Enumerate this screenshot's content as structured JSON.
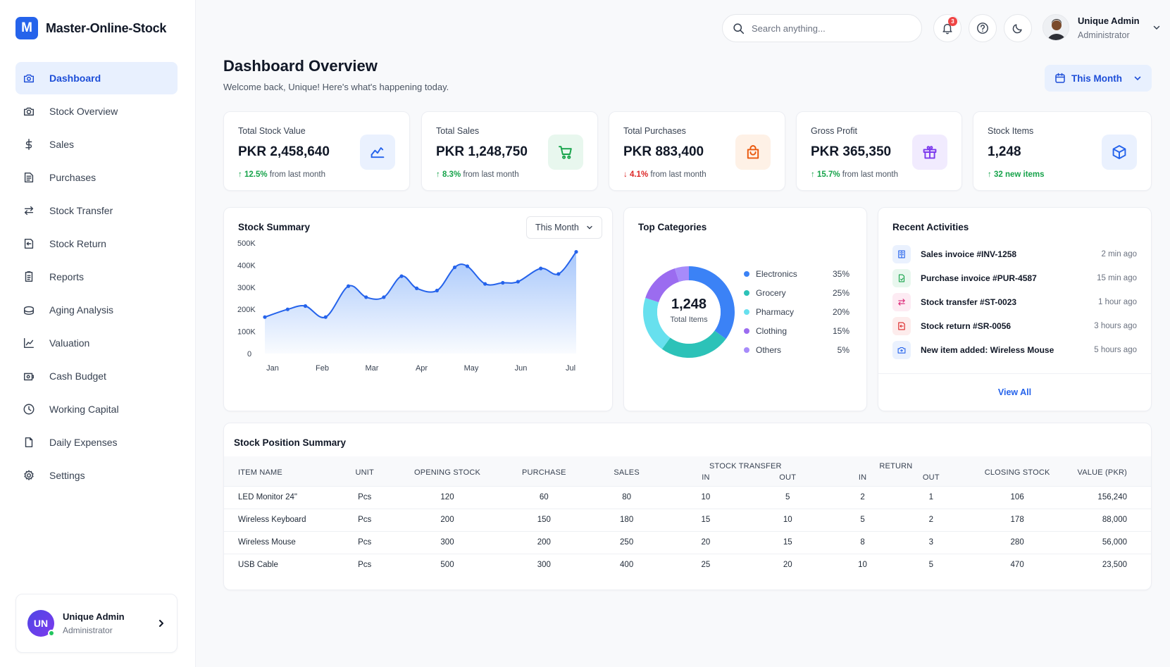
{
  "brand": {
    "logo_letter": "M",
    "name": "Master-Online-Stock"
  },
  "sidebar": {
    "items": [
      {
        "label": "Dashboard",
        "icon": "dashboard-icon",
        "active": true
      },
      {
        "label": "Stock Overview",
        "icon": "camera-box-icon"
      },
      {
        "label": "Sales",
        "icon": "dollar-icon"
      },
      {
        "label": "Purchases",
        "icon": "receipt-icon"
      },
      {
        "label": "Stock Transfer",
        "icon": "transfer-icon"
      },
      {
        "label": "Stock Return",
        "icon": "return-icon"
      },
      {
        "label": "Reports",
        "icon": "report-icon"
      },
      {
        "label": "Aging Analysis",
        "icon": "stack-icon"
      },
      {
        "label": "Valuation",
        "icon": "chart-line-icon"
      },
      {
        "label": "Cash Budget",
        "icon": "cash-icon"
      },
      {
        "label": "Working Capital",
        "icon": "clock-icon"
      },
      {
        "label": "Daily Expenses",
        "icon": "document-icon"
      },
      {
        "label": "Settings",
        "icon": "gear-icon"
      }
    ],
    "user": {
      "initials": "UN",
      "name": "Unique Admin",
      "role": "Administrator"
    }
  },
  "header": {
    "search_placeholder": "Search anything...",
    "notification_count": "3",
    "profile": {
      "name": "Unique Admin",
      "role": "Administrator"
    }
  },
  "page": {
    "title": "Dashboard Overview",
    "subtitle": "Welcome back, Unique! Here's what's happening today.",
    "period": "This Month"
  },
  "stats": [
    {
      "label": "Total Stock Value",
      "value": "PKR 2,458,640",
      "delta": "12.5%",
      "delta_text": "from last month",
      "trend": "up",
      "icon": "trend-icon",
      "color": "#2563eb",
      "bg": "#eaf1fe"
    },
    {
      "label": "Total Sales",
      "value": "PKR 1,248,750",
      "delta": "8.3%",
      "delta_text": "from last month",
      "trend": "up",
      "icon": "cart-icon",
      "color": "#16a34a",
      "bg": "#e8f7ee"
    },
    {
      "label": "Total Purchases",
      "value": "PKR 883,400",
      "delta": "4.1%",
      "delta_text": "from last month",
      "trend": "down",
      "icon": "bag-icon",
      "color": "#ea580c",
      "bg": "#fef1e6"
    },
    {
      "label": "Gross Profit",
      "value": "PKR 365,350",
      "delta": "15.7%",
      "delta_text": "from last month",
      "trend": "up",
      "icon": "gift-icon",
      "color": "#7c3aed",
      "bg": "#f1ebfe"
    },
    {
      "label": "Stock Items",
      "value": "1,248",
      "delta": "32 new items",
      "delta_text": "",
      "trend": "up",
      "icon": "cube-icon",
      "color": "#2563eb",
      "bg": "#eaf1fe"
    }
  ],
  "stock_summary": {
    "title": "Stock Summary",
    "period": "This Month",
    "chart_data": {
      "type": "area",
      "x": [
        0,
        0.45,
        0.8,
        1.2,
        1.65,
        2.0,
        2.35,
        2.7,
        3.0,
        3.4,
        3.75,
        4.0,
        4.35,
        4.7,
        5.0,
        5.45,
        5.8,
        6.15
      ],
      "tick_labels": [
        "Jan",
        "Feb",
        "Mar",
        "Apr",
        "May",
        "Jun",
        "Jul"
      ],
      "values": [
        165000,
        200000,
        215000,
        165000,
        305000,
        255000,
        255000,
        350000,
        295000,
        285000,
        390000,
        395000,
        315000,
        320000,
        325000,
        385000,
        360000,
        460000
      ],
      "ylim": [
        0,
        500000
      ],
      "yticks": [
        "500K",
        "400K",
        "300K",
        "200K",
        "100K",
        "0"
      ],
      "color": "#2563eb"
    }
  },
  "top_categories": {
    "title": "Top Categories",
    "center_value": "1,248",
    "center_label": "Total Items",
    "chart_data": {
      "type": "pie",
      "labels": [
        "Electronics",
        "Grocery",
        "Pharmacy",
        "Clothing",
        "Others"
      ],
      "values": [
        35,
        25,
        20,
        15,
        5
      ],
      "display": [
        "35%",
        "25%",
        "20%",
        "15%",
        "5%"
      ],
      "colors": [
        "#3b82f6",
        "#2cc2b8",
        "#67e0ee",
        "#9b6cf0",
        "#a78bfa"
      ]
    }
  },
  "recent_activities": {
    "title": "Recent Activities",
    "items": [
      {
        "text": "Sales invoice #INV-1258",
        "time": "2 min ago",
        "icon": "invoice-icon",
        "color": "#2563eb",
        "bg": "#eaf1fe"
      },
      {
        "text": "Purchase invoice #PUR-4587",
        "time": "15 min ago",
        "icon": "purchase-icon",
        "color": "#16a34a",
        "bg": "#e8f7ee"
      },
      {
        "text": "Stock transfer #ST-0023",
        "time": "1 hour ago",
        "icon": "transfer-icon",
        "color": "#db2777",
        "bg": "#fdebf3"
      },
      {
        "text": "Stock return #SR-0056",
        "time": "3 hours ago",
        "icon": "return-icon",
        "color": "#dc2626",
        "bg": "#fdecec"
      },
      {
        "text": "New item added: Wireless Mouse",
        "time": "5 hours ago",
        "icon": "box-add-icon",
        "color": "#2563eb",
        "bg": "#eaf1fe"
      }
    ],
    "view_all": "View All"
  },
  "stock_position": {
    "title": "Stock Position Summary",
    "headers": {
      "item": "ITEM NAME",
      "unit": "UNIT",
      "opening": "OPENING STOCK",
      "purchase": "PURCHASE",
      "sales": "SALES",
      "transfer": "STOCK TRANSFER",
      "return": "RETURN",
      "in": "IN",
      "out": "OUT",
      "closing": "CLOSING STOCK",
      "value": "VALUE (PKR)"
    },
    "rows": [
      [
        "LED Monitor 24\"",
        "Pcs",
        "120",
        "60",
        "80",
        "10",
        "5",
        "2",
        "1",
        "106",
        "156,240"
      ],
      [
        "Wireless Keyboard",
        "Pcs",
        "200",
        "150",
        "180",
        "15",
        "10",
        "5",
        "2",
        "178",
        "88,000"
      ],
      [
        "Wireless Mouse",
        "Pcs",
        "300",
        "200",
        "250",
        "20",
        "15",
        "8",
        "3",
        "280",
        "56,000"
      ],
      [
        "USB Cable",
        "Pcs",
        "500",
        "300",
        "400",
        "25",
        "20",
        "10",
        "5",
        "470",
        "23,500"
      ]
    ]
  }
}
